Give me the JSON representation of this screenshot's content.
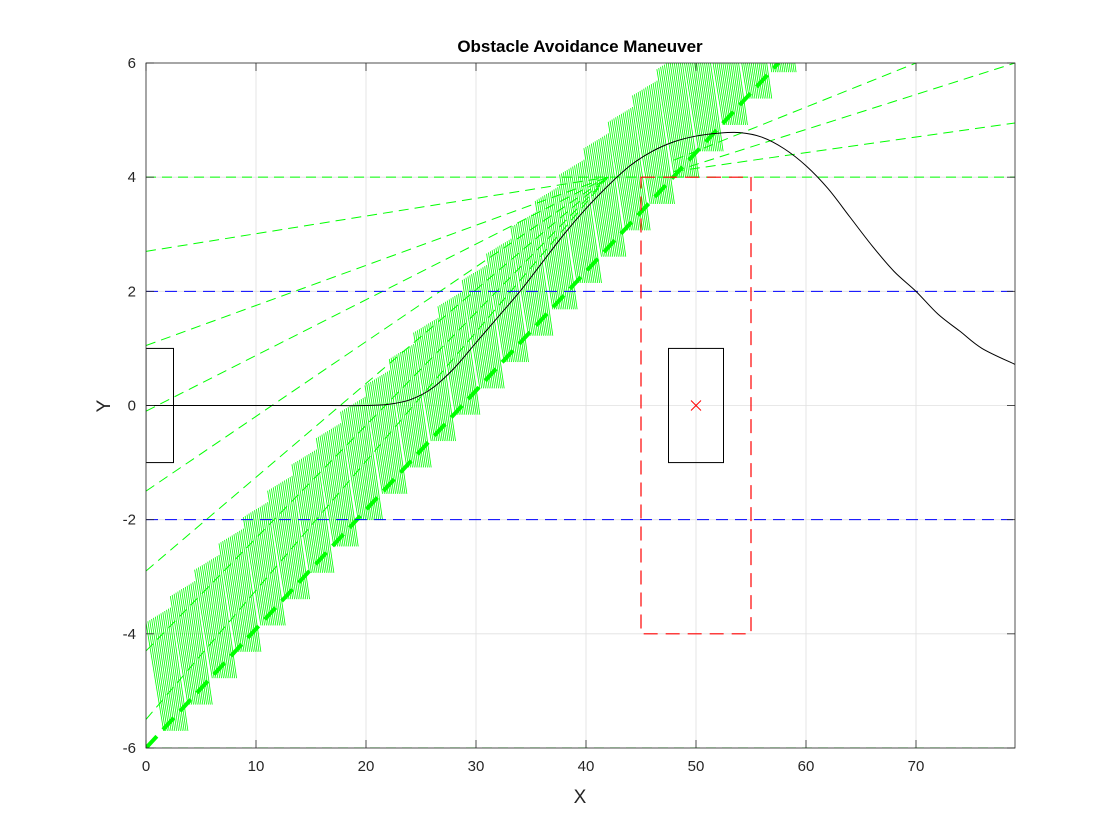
{
  "chart_data": {
    "type": "line",
    "title": "Obstacle Avoidance Maneuver",
    "xlabel": "X",
    "ylabel": "Y",
    "xlim": [
      0,
      79
    ],
    "ylim": [
      -6,
      6
    ],
    "xticks": [
      0,
      10,
      20,
      30,
      40,
      50,
      60,
      70
    ],
    "yticks": [
      -6,
      -4,
      -2,
      0,
      2,
      4,
      6
    ],
    "grid": true,
    "legend": "none",
    "colors": {
      "trajectory": "#000000",
      "lane_bounds": "#0000ff",
      "safety_zone": "#ff0000",
      "candidate_paths": "#00ff00",
      "grid": "#e0e0e0"
    },
    "trajectory": {
      "description_points": [
        [
          0,
          0
        ],
        [
          5,
          0
        ],
        [
          10,
          0
        ],
        [
          15,
          0
        ],
        [
          20,
          0
        ],
        [
          22,
          0.02
        ],
        [
          24,
          0.1
        ],
        [
          26,
          0.3
        ],
        [
          28,
          0.65
        ],
        [
          30,
          1.1
        ],
        [
          32,
          1.55
        ],
        [
          34,
          2.0
        ],
        [
          36,
          2.5
        ],
        [
          38,
          3.0
        ],
        [
          40,
          3.45
        ],
        [
          42,
          3.85
        ],
        [
          44,
          4.2
        ],
        [
          46,
          4.45
        ],
        [
          48,
          4.62
        ],
        [
          50,
          4.72
        ],
        [
          52,
          4.77
        ],
        [
          54,
          4.78
        ],
        [
          56,
          4.7
        ],
        [
          58,
          4.5
        ],
        [
          60,
          4.2
        ],
        [
          62,
          3.8
        ],
        [
          64,
          3.3
        ],
        [
          66,
          2.8
        ],
        [
          68,
          2.35
        ],
        [
          70,
          2.0
        ],
        [
          72,
          1.6
        ],
        [
          74,
          1.3
        ],
        [
          76,
          1.0
        ],
        [
          79,
          0.72
        ]
      ]
    },
    "lane_bounds": [
      2,
      -2
    ],
    "start_box": {
      "x": [
        0,
        2.5
      ],
      "y": [
        -1,
        1
      ]
    },
    "obstacle_box": {
      "x": [
        47.5,
        52.5
      ],
      "y": [
        -1,
        1
      ]
    },
    "obstacle_center": [
      50,
      0
    ],
    "safety_zone": {
      "x": [
        45,
        55
      ],
      "y": [
        -4,
        4
      ]
    },
    "candidate_paths": {
      "fan_lines": [
        {
          "x": [
            0,
            79
          ],
          "y": [
            -6,
            -6
          ]
        },
        {
          "x": [
            0,
            79
          ],
          "y": [
            4,
            4
          ]
        },
        {
          "x": [
            0,
            42
          ],
          "y": [
            2.7,
            4.0
          ]
        },
        {
          "x": [
            0,
            42
          ],
          "y": [
            1.05,
            4.0
          ]
        },
        {
          "x": [
            0,
            42
          ],
          "y": [
            -0.1,
            4.0
          ]
        },
        {
          "x": [
            0,
            42
          ],
          "y": [
            -1.5,
            4.0
          ]
        },
        {
          "x": [
            0,
            42
          ],
          "y": [
            -2.9,
            4.0
          ]
        },
        {
          "x": [
            0,
            42
          ],
          "y": [
            -4.3,
            4.0
          ]
        },
        {
          "x": [
            0,
            42
          ],
          "y": [
            -5.5,
            4.0
          ]
        },
        {
          "x": [
            48,
            79
          ],
          "y": [
            4.1,
            6.0
          ]
        },
        {
          "x": [
            48,
            79
          ],
          "y": [
            4.1,
            4.95
          ]
        },
        {
          "x": [
            48,
            70
          ],
          "y": [
            4.3,
            6.0
          ]
        }
      ],
      "envelope_start": [
        0,
        -6
      ],
      "envelope_end": [
        57.5,
        6
      ],
      "dash_count": 26
    }
  }
}
